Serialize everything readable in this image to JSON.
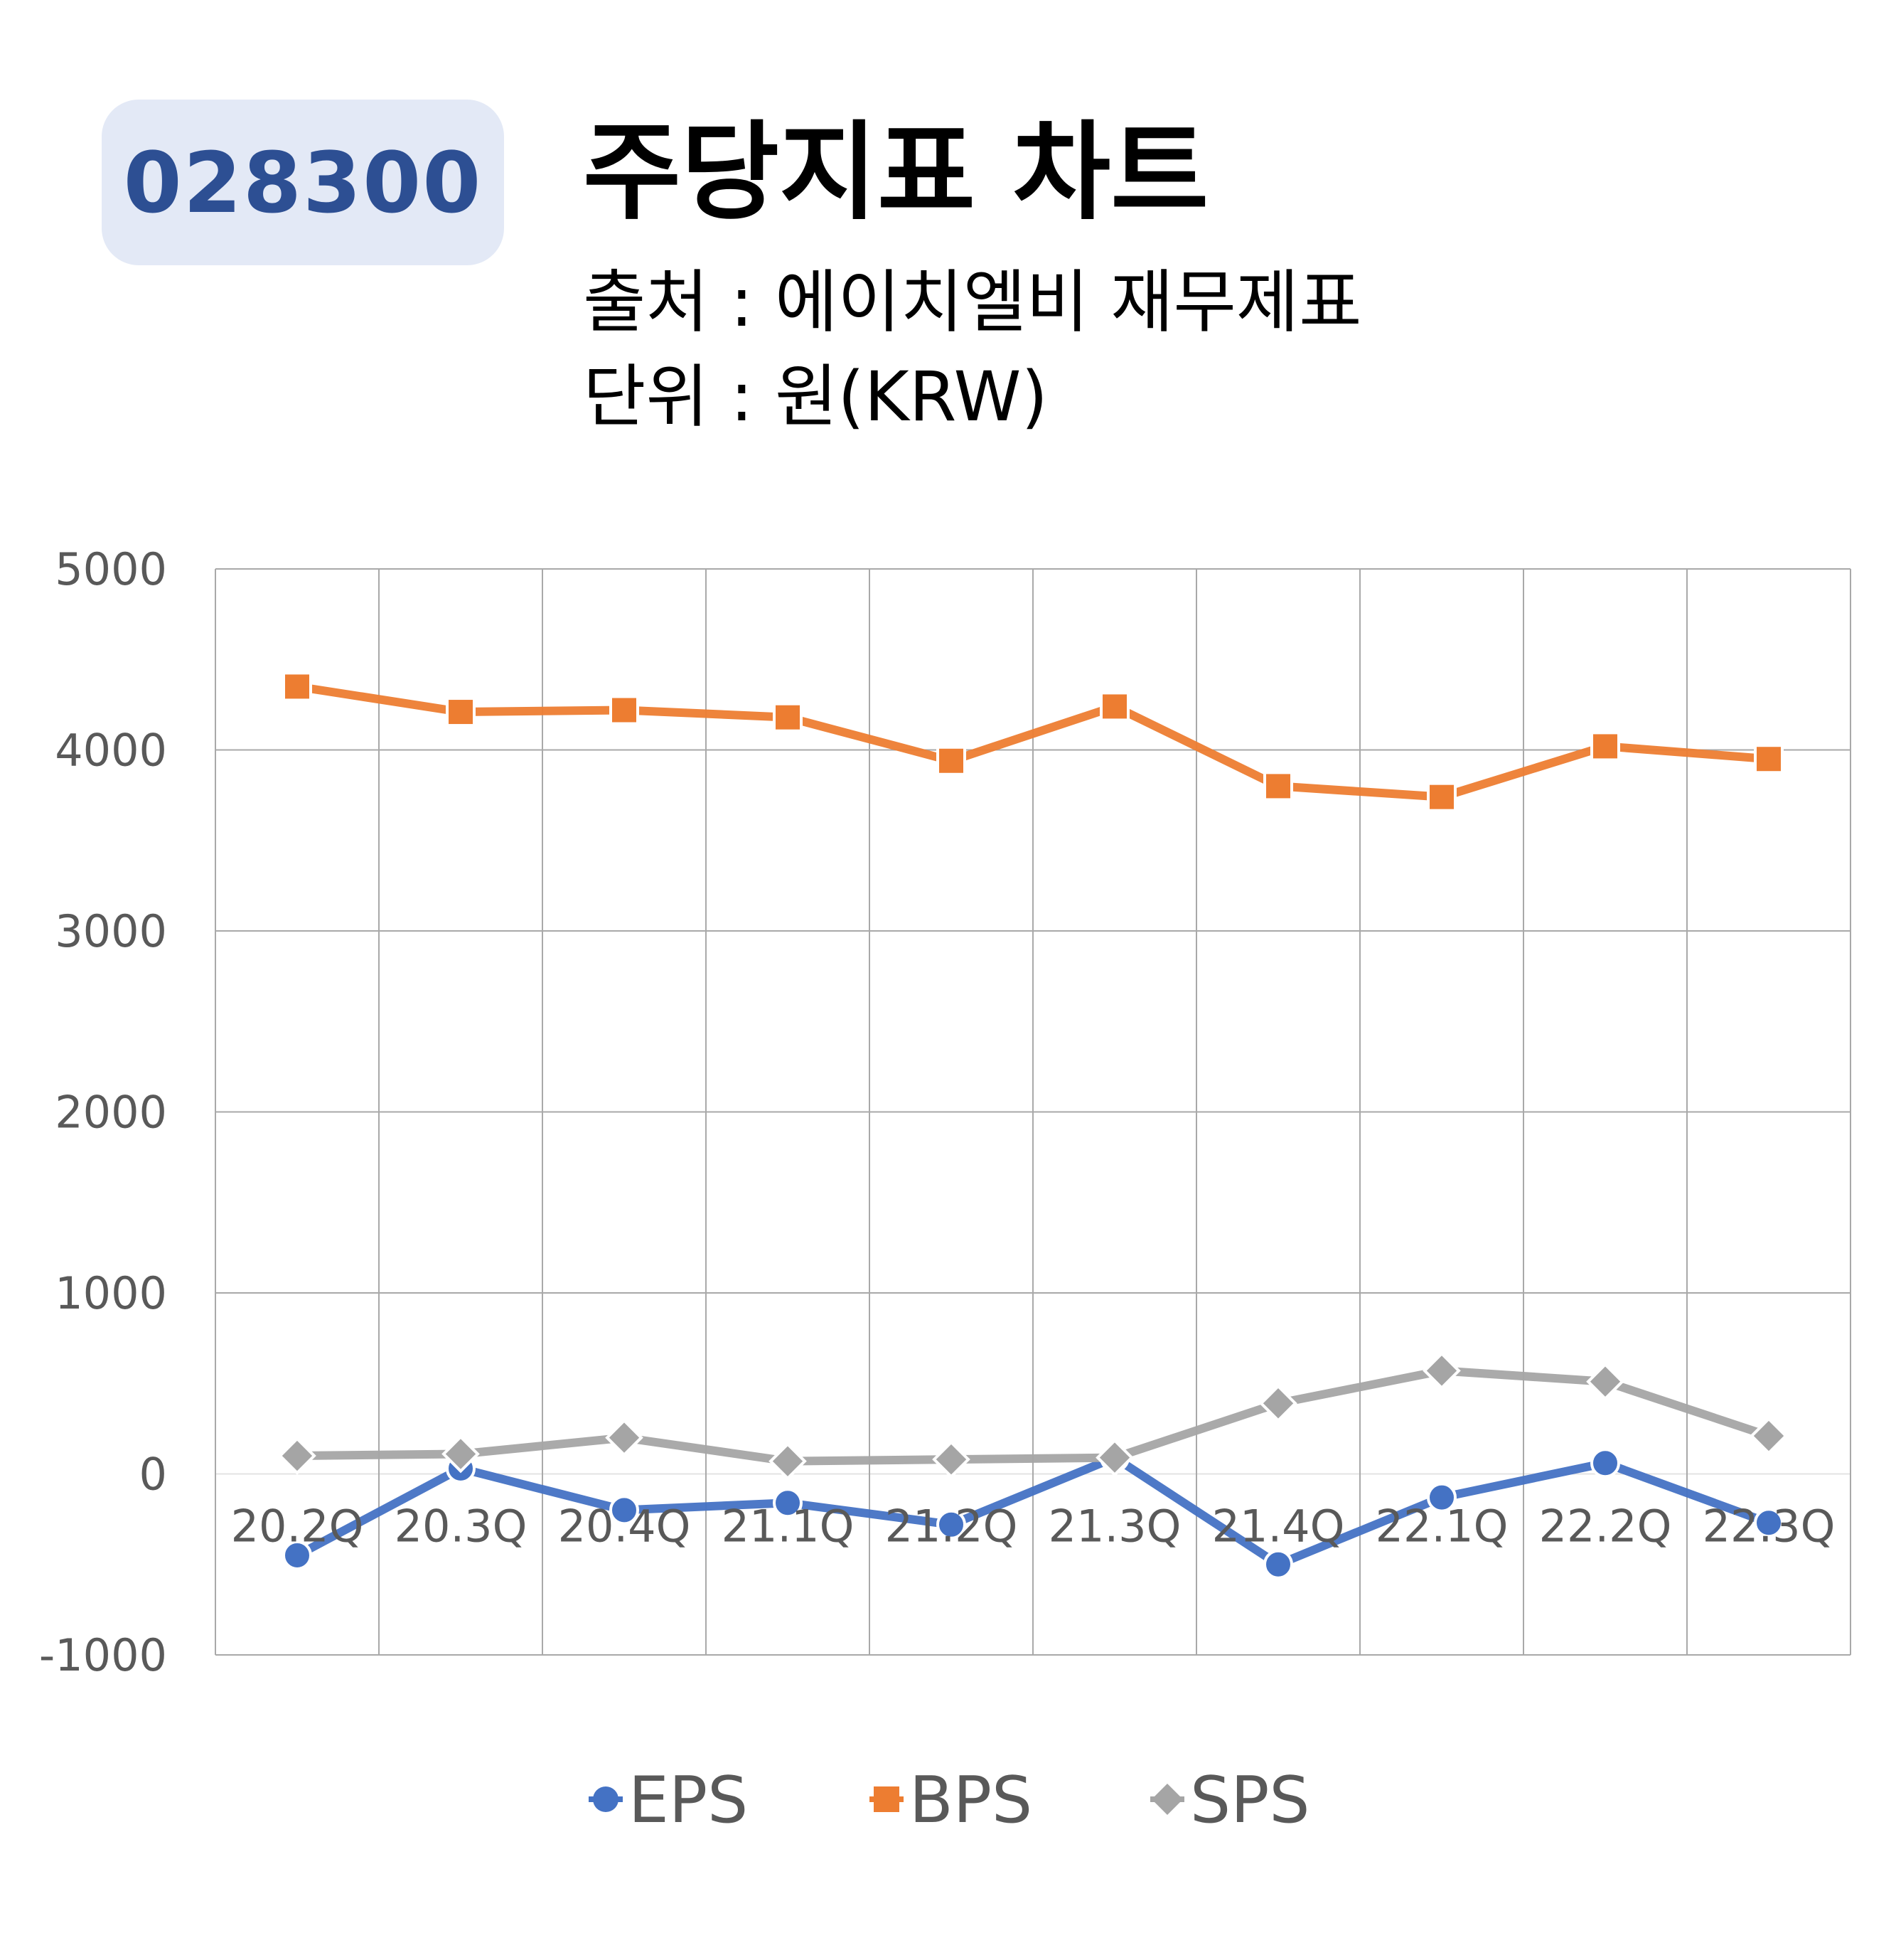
{
  "header": {
    "code": "028300",
    "title": "주당지표 차트",
    "source": "출처 : 에이치엘비 재무제표",
    "unit": "단위 : 원(KRW)"
  },
  "chart_data": {
    "type": "line",
    "categories": [
      "20.2Q",
      "20.3Q",
      "20.4Q",
      "21.1Q",
      "21.2Q",
      "21.3Q",
      "21.4Q",
      "22.1Q",
      "22.2Q",
      "22.3Q"
    ],
    "ylim": [
      -1000,
      5000
    ],
    "yticks": [
      "5000",
      "4000",
      "3000",
      "2000",
      "1000",
      "0",
      "-1000"
    ],
    "grid": true,
    "legend": "bottom",
    "series": [
      {
        "name": "EPS",
        "color": "#4472c4",
        "marker": "circle",
        "values": [
          -450,
          30,
          -200,
          -160,
          -280,
          90,
          -500,
          -130,
          60,
          -270
        ]
      },
      {
        "name": "BPS",
        "color": "#ed7d31",
        "marker": "square",
        "values": [
          4350,
          4210,
          4220,
          4180,
          3940,
          4240,
          3800,
          3740,
          4020,
          3950
        ]
      },
      {
        "name": "SPS",
        "color": "#a5a5a5",
        "marker": "diamond",
        "values": [
          100,
          110,
          200,
          70,
          80,
          90,
          390,
          570,
          510,
          210
        ]
      }
    ]
  }
}
